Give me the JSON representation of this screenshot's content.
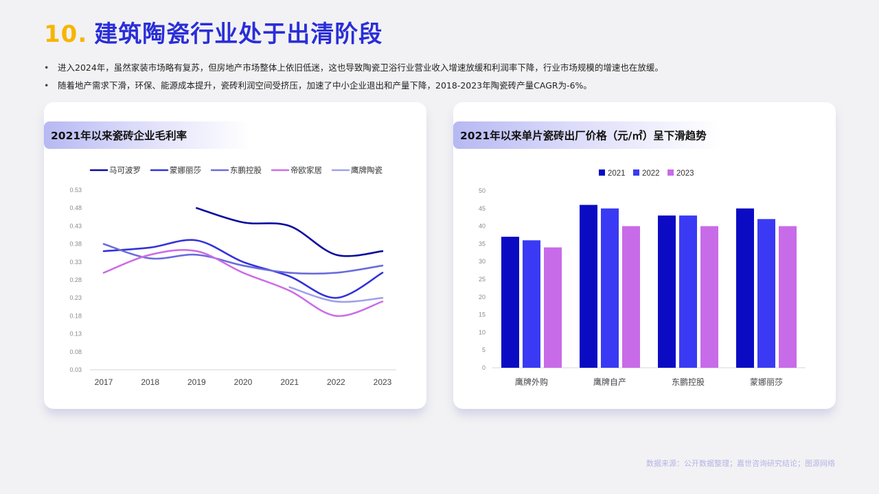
{
  "page": {
    "title_number": "10.",
    "title_text": "建筑陶瓷行业处于出清阶段",
    "bullets": [
      "进入2024年，虽然家装市场略有复苏，但房地产市场整体上依旧低迷，这也导致陶瓷卫浴行业营业收入增速放缓和利润率下降，行业市场规模的增速也在放缓。",
      "随着地产需求下滑，环保、能源成本提升，瓷砖利润空间受挤压，加速了中小企业退出和产量下降，2018-2023年陶瓷砖产量CAGR为-6%。"
    ],
    "source": "数据来源：公开数据整理；嘉世咨询研究结论；图源网络"
  },
  "chart_data": [
    {
      "type": "line",
      "title": "2021年以来瓷砖企业毛利率",
      "x": [
        "2017",
        "2018",
        "2019",
        "2020",
        "2021",
        "2022",
        "2023"
      ],
      "y_ticks": [
        "0.03",
        "0.08",
        "0.13",
        "0.18",
        "0.23",
        "0.28",
        "0.33",
        "0.38",
        "0.43",
        "0.48",
        "0.53"
      ],
      "ylim": [
        0.03,
        0.53
      ],
      "grid": false,
      "legend": "top",
      "series": [
        {
          "name": "马可波罗",
          "color": "#0a0aa0",
          "values": [
            null,
            null,
            0.48,
            0.44,
            0.43,
            0.35,
            0.36
          ]
        },
        {
          "name": "蒙娜丽莎",
          "color": "#3232d8",
          "values": [
            0.36,
            0.37,
            0.39,
            0.33,
            0.29,
            0.23,
            0.3
          ]
        },
        {
          "name": "东鹏控股",
          "color": "#6b6bdc",
          "values": [
            0.38,
            0.34,
            0.35,
            0.32,
            0.3,
            0.3,
            0.32
          ]
        },
        {
          "name": "帝欧家居",
          "color": "#cc6de6",
          "values": [
            0.3,
            0.35,
            0.36,
            0.3,
            0.25,
            0.18,
            0.22
          ]
        },
        {
          "name": "鹰牌陶瓷",
          "color": "#a0a0ec",
          "values": [
            null,
            null,
            null,
            null,
            0.26,
            0.22,
            0.23
          ]
        }
      ]
    },
    {
      "type": "bar",
      "title": "2021年以来单片瓷砖出厂价格（元/㎡）呈下滑趋势",
      "categories": [
        "鹰牌外购",
        "鹰牌自产",
        "东鹏控股",
        "蒙娜丽莎"
      ],
      "y_ticks": [
        "0",
        "5",
        "10",
        "15",
        "20",
        "25",
        "30",
        "35",
        "40",
        "45",
        "50"
      ],
      "ylim": [
        0,
        50
      ],
      "grid": false,
      "legend": "top",
      "series": [
        {
          "name": "2021",
          "color": "#0b0bc4",
          "values": [
            37,
            46,
            43,
            45
          ]
        },
        {
          "name": "2022",
          "color": "#3a3af4",
          "values": [
            36,
            45,
            43,
            42
          ]
        },
        {
          "name": "2023",
          "color": "#c86be8",
          "values": [
            34,
            40,
            40,
            40
          ]
        }
      ]
    }
  ]
}
